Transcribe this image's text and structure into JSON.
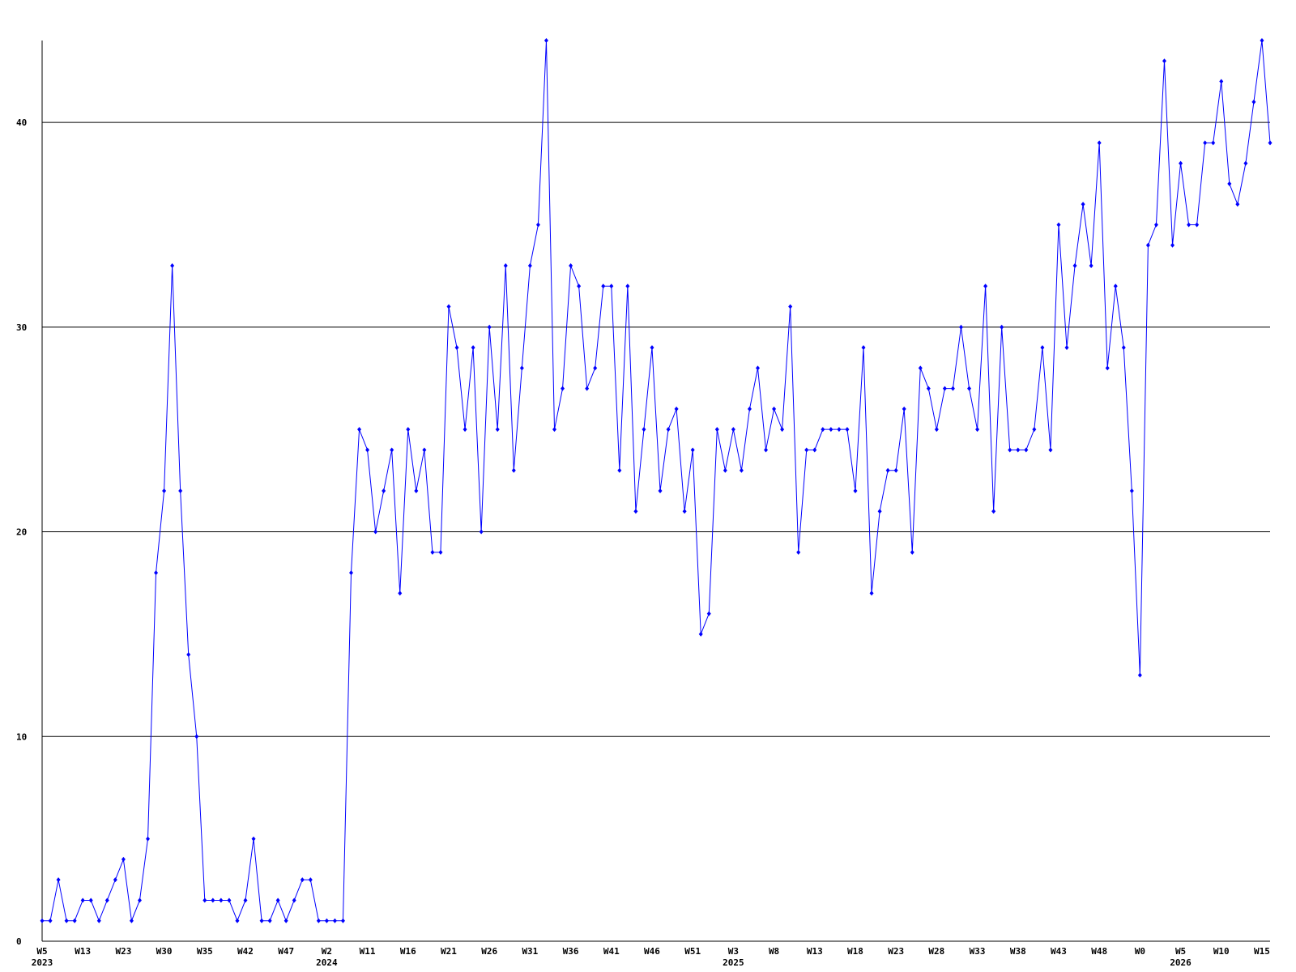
{
  "chart_data": {
    "type": "line",
    "categories": [
      "W5",
      null,
      null,
      null,
      null,
      "W13",
      null,
      null,
      null,
      null,
      "W23",
      null,
      null,
      null,
      null,
      "W30",
      null,
      null,
      null,
      null,
      "W35",
      null,
      null,
      null,
      null,
      "W42",
      null,
      null,
      null,
      null,
      "W47",
      null,
      null,
      null,
      null,
      "W2",
      null,
      null,
      null,
      null,
      "W11",
      null,
      null,
      null,
      null,
      "W16",
      null,
      null,
      null,
      null,
      "W21",
      null,
      null,
      null,
      null,
      "W26",
      null,
      null,
      null,
      null,
      "W31",
      null,
      null,
      null,
      null,
      "W36",
      null,
      null,
      null,
      null,
      "W41",
      null,
      null,
      null,
      null,
      "W46",
      null,
      null,
      null,
      null,
      "W51",
      null,
      null,
      null,
      null,
      "W3",
      null,
      null,
      null,
      null,
      "W8",
      null,
      null,
      null,
      null,
      "W13",
      null,
      null,
      null,
      null,
      "W18",
      null,
      null,
      null,
      null,
      "W23",
      null,
      null,
      null,
      null,
      "W28",
      null,
      null,
      null,
      null,
      "W33",
      null,
      null,
      null,
      null,
      "W38",
      null,
      null,
      null,
      null,
      "W43",
      null,
      null,
      null,
      null,
      "W48",
      null,
      null,
      null,
      null,
      "W0",
      null,
      null,
      null,
      null,
      "W5",
      null,
      null,
      null,
      null,
      "W10",
      null,
      null,
      null,
      null,
      "W15",
      null
    ],
    "year_labels": [
      "2023",
      null,
      null,
      null,
      null,
      null,
      null,
      null,
      null,
      null,
      null,
      null,
      null,
      null,
      null,
      null,
      null,
      null,
      null,
      null,
      null,
      null,
      null,
      null,
      null,
      null,
      null,
      null,
      null,
      null,
      null,
      null,
      null,
      null,
      null,
      "2024",
      null,
      null,
      null,
      null,
      null,
      null,
      null,
      null,
      null,
      null,
      null,
      null,
      null,
      null,
      null,
      null,
      null,
      null,
      null,
      null,
      null,
      null,
      null,
      null,
      null,
      null,
      null,
      null,
      null,
      null,
      null,
      null,
      null,
      null,
      null,
      null,
      null,
      null,
      null,
      null,
      null,
      null,
      null,
      null,
      null,
      null,
      null,
      null,
      null,
      "2025",
      null,
      null,
      null,
      null,
      null,
      null,
      null,
      null,
      null,
      null,
      null,
      null,
      null,
      null,
      null,
      null,
      null,
      null,
      null,
      null,
      null,
      null,
      null,
      null,
      null,
      null,
      null,
      null,
      null,
      null,
      null,
      null,
      null,
      null,
      null,
      null,
      null,
      null,
      null,
      null,
      null,
      null,
      null,
      null,
      null,
      null,
      null,
      null,
      null,
      null,
      null,
      null,
      null,
      null,
      "2026",
      null,
      null,
      null,
      null,
      null,
      null,
      null,
      null,
      null,
      null,
      null,
      null,
      null,
      null,
      null,
      null
    ],
    "values": [
      1,
      1,
      3,
      1,
      1,
      2,
      2,
      1,
      2,
      3,
      4,
      1,
      2,
      5,
      18,
      22,
      33,
      22,
      14,
      10,
      2,
      2,
      2,
      2,
      1,
      2,
      5,
      1,
      1,
      2,
      1,
      2,
      3,
      3,
      1,
      1,
      1,
      1,
      18,
      25,
      24,
      20,
      22,
      24,
      17,
      25,
      22,
      24,
      19,
      19,
      31,
      29,
      25,
      29,
      20,
      30,
      25,
      33,
      23,
      28,
      33,
      35,
      44,
      25,
      27,
      33,
      32,
      27,
      28,
      32,
      32,
      23,
      32,
      21,
      25,
      29,
      22,
      25,
      26,
      21,
      24,
      15,
      16,
      25,
      23,
      25,
      23,
      26,
      28,
      24,
      26,
      25,
      31,
      19,
      24,
      24,
      25,
      25,
      25,
      25,
      22,
      29,
      17,
      21,
      23,
      23,
      26,
      19,
      28,
      27,
      25,
      27,
      27,
      30,
      27,
      25,
      32,
      21,
      30,
      24,
      24,
      24,
      25,
      29,
      24,
      35,
      29,
      33,
      36,
      33,
      39,
      28,
      32,
      29,
      22,
      13,
      34,
      35,
      43,
      34,
      38,
      35,
      35,
      39,
      39,
      42,
      37,
      36,
      38,
      41,
      44,
      39
    ],
    "color": "#0000ff",
    "ylim": [
      0,
      44
    ],
    "yticks": [
      0,
      10,
      20,
      30,
      40
    ],
    "grid": true
  }
}
